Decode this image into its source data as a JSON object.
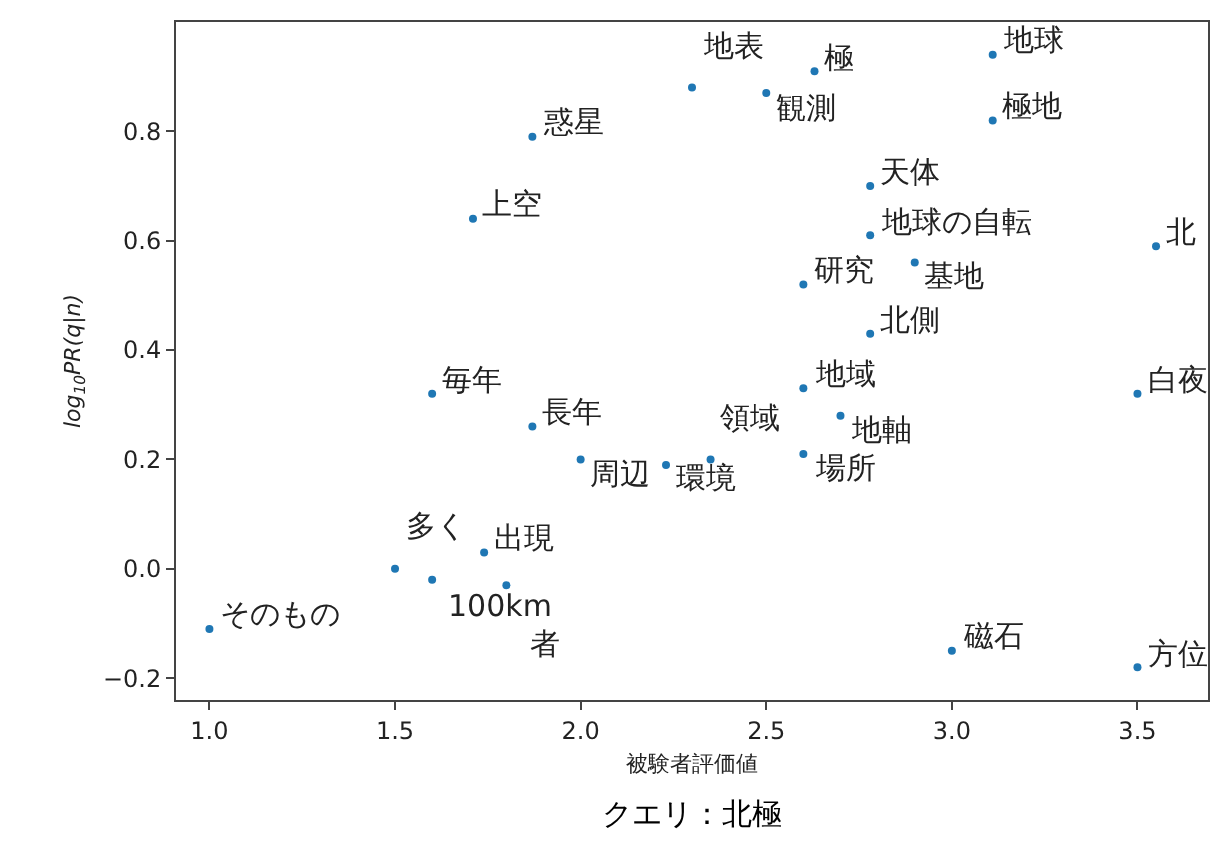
{
  "chart_data": {
    "type": "scatter",
    "xlabel": "被験者評価値",
    "ylabel": "log$_{10}$PR(q|n)",
    "x": [
      1.0,
      1.5,
      1.6,
      1.74,
      1.8,
      1.6,
      1.87,
      2.0,
      2.23,
      2.35,
      2.6,
      2.7,
      2.6,
      3.0,
      3.5,
      3.5,
      3.55,
      2.78,
      2.6,
      2.9,
      2.78,
      2.78,
      3.11,
      3.11,
      2.3,
      2.5,
      2.63,
      1.87,
      1.71
    ],
    "series": [
      {
        "color": "#1f77b4",
        "values": [
          -0.11,
          0.0,
          -0.02,
          0.03,
          -0.03,
          0.32,
          0.26,
          0.2,
          0.19,
          0.2,
          0.33,
          0.28,
          0.21,
          -0.15,
          -0.18,
          0.32,
          0.59,
          0.43,
          0.52,
          0.56,
          0.61,
          0.7,
          0.82,
          0.94,
          0.88,
          0.87,
          0.91,
          0.79,
          0.64
        ]
      }
    ],
    "marker": "circle",
    "grid": false,
    "xlim": [
      0.91,
      3.69
    ],
    "ylim": [
      -0.24,
      1.0
    ],
    "xticks": [
      {
        "value": 1,
        "label": "1.0"
      },
      {
        "value": 1.5,
        "label": "1.5"
      },
      {
        "value": 2,
        "label": "2.0"
      },
      {
        "value": 2.5,
        "label": "2.5"
      },
      {
        "value": 3,
        "label": "3.0"
      },
      {
        "value": 3.5,
        "label": "3.5"
      }
    ],
    "yticks": [
      {
        "value": -0.2,
        "label": "−0.2"
      },
      {
        "value": 0,
        "label": "0.0"
      },
      {
        "value": 0.2,
        "label": "0.2"
      },
      {
        "value": 0.4,
        "label": "0.4"
      },
      {
        "value": 0.6,
        "label": "0.6"
      },
      {
        "value": 0.8,
        "label": "0.8"
      }
    ],
    "annotations": [
      {
        "text": "そのもの",
        "x": 1.0,
        "y": -0.11
      },
      {
        "text": "多く",
        "x": 1.5,
        "y": 0.0
      },
      {
        "text": "100km",
        "x": 1.6,
        "y": -0.02
      },
      {
        "text": "出現",
        "x": 1.74,
        "y": 0.03
      },
      {
        "text": "者",
        "x": 1.8,
        "y": -0.03
      },
      {
        "text": "毎年",
        "x": 1.6,
        "y": 0.32
      },
      {
        "text": "長年",
        "x": 1.87,
        "y": 0.26
      },
      {
        "text": "周辺",
        "x": 2.0,
        "y": 0.2
      },
      {
        "text": "環境",
        "x": 2.23,
        "y": 0.19
      },
      {
        "text": "領域",
        "x": 2.35,
        "y": 0.2
      },
      {
        "text": "地域",
        "x": 2.6,
        "y": 0.33
      },
      {
        "text": "地軸",
        "x": 2.7,
        "y": 0.28
      },
      {
        "text": "場所",
        "x": 2.6,
        "y": 0.21
      },
      {
        "text": "磁石",
        "x": 3.0,
        "y": -0.15
      },
      {
        "text": "方位",
        "x": 3.5,
        "y": -0.18
      },
      {
        "text": "白夜",
        "x": 3.5,
        "y": 0.32
      },
      {
        "text": "北",
        "x": 3.55,
        "y": 0.59
      },
      {
        "text": "北側",
        "x": 2.78,
        "y": 0.43
      },
      {
        "text": "研究",
        "x": 2.6,
        "y": 0.52
      },
      {
        "text": "基地",
        "x": 2.9,
        "y": 0.56
      },
      {
        "text": "地球の自転",
        "x": 2.78,
        "y": 0.61
      },
      {
        "text": "天体",
        "x": 2.78,
        "y": 0.7
      },
      {
        "text": "極地",
        "x": 3.11,
        "y": 0.82
      },
      {
        "text": "地球",
        "x": 3.11,
        "y": 0.94
      },
      {
        "text": "地表",
        "x": 2.3,
        "y": 0.88
      },
      {
        "text": "観測",
        "x": 2.5,
        "y": 0.87
      },
      {
        "text": "極",
        "x": 2.63,
        "y": 0.91
      },
      {
        "text": "惑星",
        "x": 1.87,
        "y": 0.79
      },
      {
        "text": "上空",
        "x": 1.71,
        "y": 0.64
      },
      "クエリ：北極"
    ]
  }
}
